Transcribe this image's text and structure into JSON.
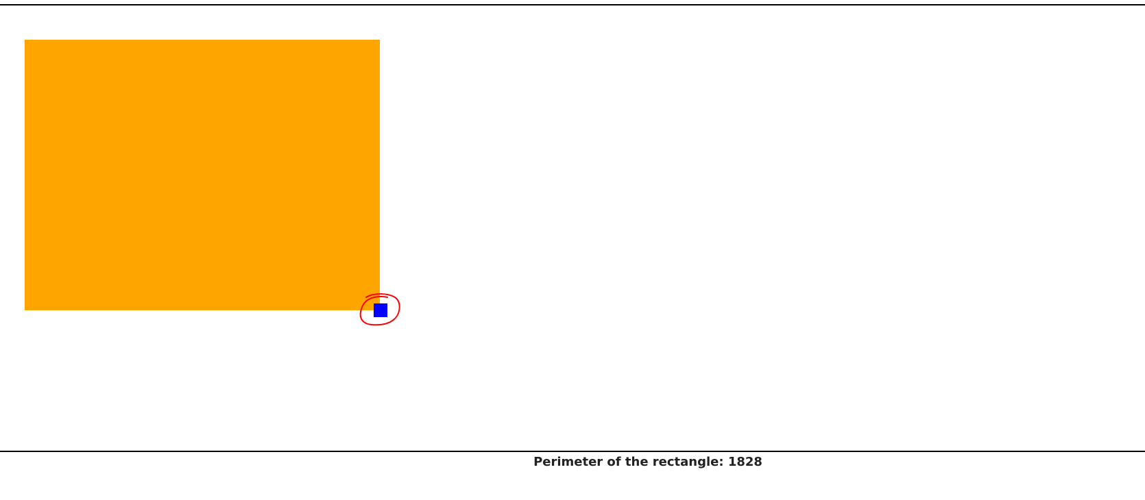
{
  "status": {
    "perimeter_text": "Perimeter of the rectangle: 1828"
  },
  "colors": {
    "rectangle_fill": "#FFA500",
    "handle_fill": "#0000FF",
    "annotation_stroke": "#FF0000",
    "divider": "#000000"
  }
}
